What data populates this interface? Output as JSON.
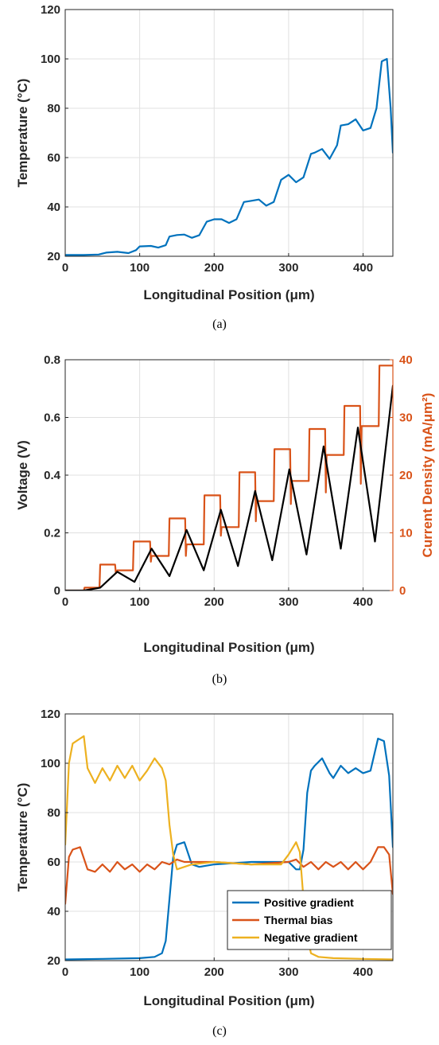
{
  "colors": {
    "blue": "#0072BD",
    "orange": "#D95319",
    "yellow": "#EDB120",
    "black": "#000000",
    "axis": "#262626",
    "grid": "#e0e0e0"
  },
  "chart_data": [
    {
      "type": "line",
      "caption": "(a)",
      "xlabel": "Longitudinal Position (μm)",
      "ylabel": "Temperature (°C)",
      "xlim": [
        0,
        440
      ],
      "ylim": [
        20,
        120
      ],
      "xticks": [
        0,
        100,
        200,
        300,
        400
      ],
      "yticks": [
        20,
        40,
        60,
        80,
        100,
        120
      ],
      "grid": true,
      "series": [
        {
          "color": "#0072BD",
          "x": [
            0,
            25,
            45,
            55,
            70,
            85,
            95,
            100,
            115,
            125,
            135,
            140,
            150,
            160,
            170,
            180,
            190,
            200,
            210,
            220,
            230,
            240,
            250,
            260,
            270,
            280,
            290,
            300,
            310,
            320,
            330,
            335,
            345,
            355,
            365,
            370,
            380,
            390,
            400,
            410,
            418,
            425,
            432,
            437,
            440
          ],
          "y": [
            20.5,
            20.5,
            20.7,
            21.5,
            21.8,
            21.3,
            22.5,
            24,
            24.2,
            23.5,
            24.5,
            28,
            28.6,
            28.8,
            27.5,
            28.5,
            34,
            35,
            35,
            33.5,
            35,
            42,
            42.5,
            43,
            40.5,
            42,
            51,
            53,
            50,
            52,
            61.5,
            62,
            63.5,
            59.5,
            65,
            73,
            73.5,
            75.5,
            71,
            72,
            80,
            99,
            100,
            80,
            62
          ]
        }
      ]
    },
    {
      "type": "line",
      "caption": "(b)",
      "xlabel": "Longitudinal Position (μm)",
      "ylabel": "Voltage (V)",
      "ylabel_right": "Current Density (mA/μm²)",
      "xlim": [
        0,
        440
      ],
      "ylim": [
        0,
        0.8
      ],
      "ylim_right": [
        0,
        40
      ],
      "xticks": [
        0,
        100,
        200,
        300,
        400
      ],
      "yticks": [
        0,
        0.2,
        0.4,
        0.6,
        0.8
      ],
      "yticks_right": [
        0,
        10,
        20,
        30,
        40
      ],
      "grid": true,
      "series": [
        {
          "axis": "left",
          "color": "#000000",
          "x": [
            0,
            25,
            47,
            70,
            93,
            116,
            140,
            163,
            186,
            209,
            232,
            255,
            278,
            301,
            324,
            347,
            370,
            393,
            416,
            440
          ],
          "y": [
            0,
            0,
            0.01,
            0.065,
            0.03,
            0.145,
            0.05,
            0.21,
            0.07,
            0.28,
            0.085,
            0.345,
            0.105,
            0.42,
            0.125,
            0.5,
            0.145,
            0.565,
            0.17,
            0.71
          ]
        },
        {
          "axis": "right",
          "color": "#D95319",
          "x": [
            0,
            25,
            26,
            46,
            47,
            67,
            68,
            70,
            71,
            91,
            92,
            93,
            114,
            115,
            116,
            118,
            139,
            140,
            161,
            162,
            163,
            165,
            186,
            187,
            208,
            209,
            210,
            212,
            233,
            234,
            255,
            256,
            257,
            259,
            280,
            281,
            302,
            303,
            304,
            306,
            327,
            328,
            349,
            350,
            351,
            353,
            374,
            375,
            396,
            397,
            398,
            400,
            421,
            422,
            440
          ],
          "y": [
            0,
            0,
            0.5,
            0.5,
            4.5,
            4.5,
            3,
            3.5,
            3.5,
            3.5,
            8.5,
            8.5,
            8.5,
            5,
            6,
            6,
            6,
            12.5,
            12.5,
            6,
            8,
            8,
            8,
            16.5,
            16.5,
            9.5,
            11,
            11,
            11,
            20.5,
            20.5,
            12,
            15.5,
            15.5,
            15.5,
            24.5,
            24.5,
            15,
            19,
            19,
            19,
            28,
            28,
            17,
            23.5,
            23.5,
            23.5,
            32,
            32,
            18.5,
            28.5,
            28.5,
            28.5,
            39,
            39
          ]
        }
      ]
    },
    {
      "type": "line",
      "caption": "(c)",
      "xlabel": "Longitudinal Position (μm)",
      "ylabel": "Temperature (°C)",
      "xlim": [
        0,
        440
      ],
      "ylim": [
        20,
        120
      ],
      "xticks": [
        0,
        100,
        200,
        300,
        400
      ],
      "yticks": [
        20,
        40,
        60,
        80,
        100,
        120
      ],
      "grid": true,
      "legend": "bottom-right",
      "series": [
        {
          "name": "Positive gradient",
          "color": "#0072BD",
          "x": [
            0,
            50,
            100,
            120,
            130,
            135,
            140,
            145,
            150,
            160,
            170,
            180,
            200,
            250,
            300,
            310,
            315,
            320,
            325,
            330,
            335,
            345,
            355,
            360,
            370,
            380,
            390,
            400,
            410,
            420,
            428,
            435,
            440
          ],
          "y": [
            20.5,
            20.7,
            21,
            21.5,
            23,
            28,
            45,
            62,
            67,
            68,
            59,
            58,
            59,
            60,
            60,
            57,
            57,
            65,
            88,
            97,
            99,
            102,
            96,
            94,
            99,
            96,
            98,
            96,
            97,
            110,
            109,
            95,
            66
          ]
        },
        {
          "name": "Thermal bias",
          "color": "#D95319",
          "x": [
            0,
            5,
            10,
            20,
            30,
            40,
            50,
            60,
            70,
            80,
            90,
            100,
            110,
            120,
            130,
            140,
            150,
            160,
            200,
            250,
            300,
            310,
            320,
            330,
            340,
            350,
            360,
            370,
            380,
            390,
            400,
            410,
            420,
            428,
            435,
            440
          ],
          "y": [
            43,
            62,
            65,
            66,
            57,
            56,
            59,
            56,
            60,
            57,
            59,
            56,
            59,
            57,
            60,
            59,
            61,
            60,
            60,
            59,
            60,
            61,
            58,
            60,
            57,
            60,
            58,
            60,
            57,
            60,
            57,
            60,
            66,
            66,
            63,
            47
          ]
        },
        {
          "name": "Negative gradient",
          "color": "#EDB120",
          "x": [
            0,
            5,
            10,
            20,
            25,
            30,
            40,
            50,
            60,
            70,
            80,
            90,
            100,
            110,
            120,
            130,
            135,
            140,
            145,
            150,
            160,
            170,
            200,
            250,
            290,
            300,
            310,
            315,
            320,
            325,
            330,
            340,
            360,
            400,
            440
          ],
          "y": [
            67,
            100,
            108,
            110,
            111,
            98,
            92,
            98,
            93,
            99,
            94,
            99,
            93,
            97,
            102,
            98,
            93,
            75,
            63,
            57,
            58,
            59,
            60,
            59,
            59,
            63,
            68,
            64,
            45,
            30,
            23,
            21.5,
            21,
            20.7,
            20.5
          ]
        }
      ]
    }
  ]
}
